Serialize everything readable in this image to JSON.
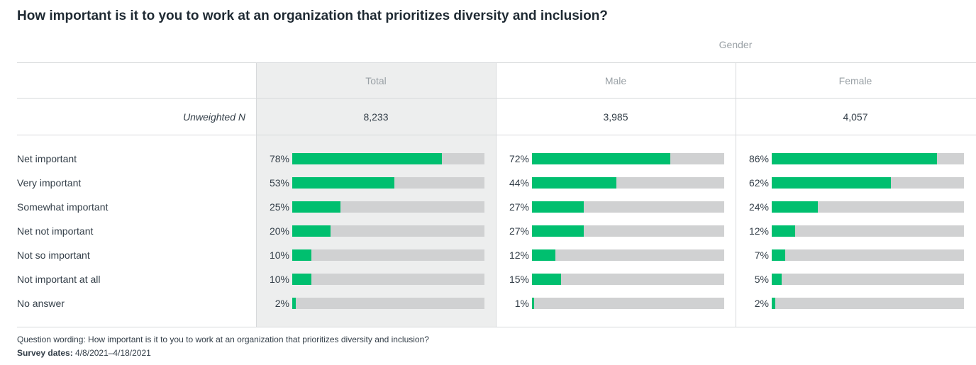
{
  "title": "How important is it to you to work at an organization that prioritizes diversity and inclusion?",
  "group_label": "Gender",
  "n_label": "Unweighted N",
  "colors": {
    "bar": "#00bf6f",
    "track": "#d0d1d2",
    "total_bg": "#edeeee"
  },
  "chart_data": {
    "type": "bar",
    "orientation": "horizontal",
    "title": "How important is it to you to work at an organization that prioritizes diversity and inclusion?",
    "group": "Gender",
    "categories": [
      "Net important",
      "Very important",
      "Somewhat important",
      "Net not important",
      "Not so important",
      "Not important at all",
      "No answer"
    ],
    "xlim": [
      0,
      100
    ],
    "unit": "%",
    "series": [
      {
        "name": "Total",
        "n": "8,233",
        "values": [
          78,
          53,
          25,
          20,
          10,
          10,
          2
        ]
      },
      {
        "name": "Male",
        "n": "3,985",
        "values": [
          72,
          44,
          27,
          27,
          12,
          15,
          1
        ]
      },
      {
        "name": "Female",
        "n": "4,057",
        "values": [
          86,
          62,
          24,
          12,
          7,
          5,
          2
        ]
      }
    ]
  },
  "footer": {
    "question_wording": "Question wording: How important is it to you to work at an organization that prioritizes diversity and inclusion?",
    "survey_dates_label": "Survey dates:",
    "survey_dates_value": "4/8/2021–4/18/2021"
  }
}
